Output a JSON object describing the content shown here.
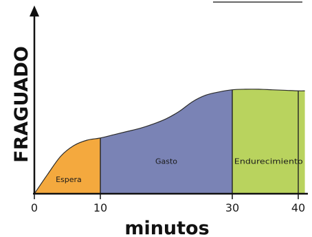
{
  "chart_data": {
    "type": "area",
    "xlabel": "minutos",
    "ylabel": "FRAGUADO",
    "xlim": [
      0,
      41
    ],
    "x_ticks": [
      "0",
      "10",
      "30",
      "40"
    ],
    "x_tick_values": [
      0,
      10,
      30,
      40
    ],
    "curve": {
      "x": [
        0,
        2,
        4,
        6,
        8,
        10,
        12,
        14,
        16,
        18,
        20,
        22,
        24,
        26,
        28,
        30,
        32,
        34,
        36,
        38,
        40,
        41
      ],
      "y": [
        0,
        0.18,
        0.35,
        0.45,
        0.5,
        0.52,
        0.55,
        0.58,
        0.61,
        0.65,
        0.7,
        0.77,
        0.86,
        0.92,
        0.95,
        0.97,
        0.975,
        0.975,
        0.97,
        0.965,
        0.96,
        0.96
      ]
    },
    "regions": [
      {
        "label": "Espera",
        "from": 0,
        "to": 10,
        "color": "#F4A93E"
      },
      {
        "label": "Gasto",
        "from": 10,
        "to": 30,
        "color": "#7A83B5"
      },
      {
        "label": "Endurecimiento",
        "from": 30,
        "to": 41,
        "color": "#B9D35E"
      }
    ]
  }
}
